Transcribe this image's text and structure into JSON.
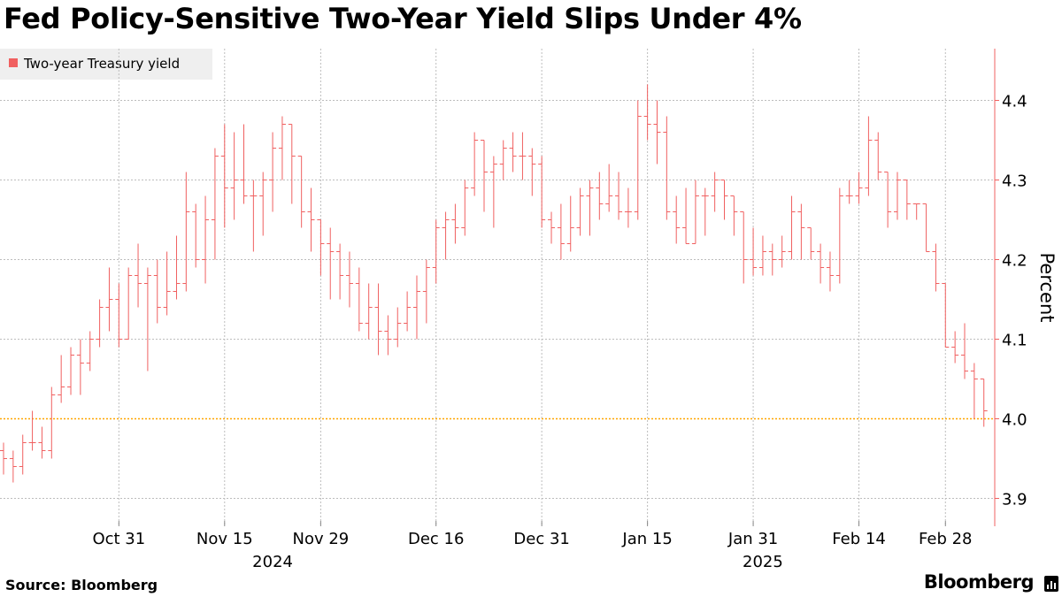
{
  "chart_data": {
    "type": "ohlc",
    "title": "Fed Policy-Sensitive Two-Year Yield Slips Under 4%",
    "series_name": "Two-year Treasury yield",
    "series_color": "#f06060",
    "reference_line": {
      "value": 4.0,
      "color": "#ffa500",
      "style": "dotted"
    },
    "ylabel": "Percent",
    "ylim": [
      3.865,
      4.465
    ],
    "y_ticks": [
      3.9,
      4.0,
      4.1,
      4.2,
      4.3,
      4.4
    ],
    "y_tick_labels": [
      "3.9",
      "4.0",
      "4.1",
      "4.2",
      "4.3",
      "4.4"
    ],
    "x_tick_labels": [
      "Oct 31",
      "Nov 15",
      "Nov 29",
      "Dec 16",
      "Dec 31",
      "Jan 15",
      "Jan 31",
      "Feb 14",
      "Feb 28"
    ],
    "x_tick_bar_index": [
      12,
      23,
      33,
      45,
      56,
      67,
      78,
      89,
      98
    ],
    "year_labels": [
      {
        "label": "2024",
        "bar_index": 28
      },
      {
        "label": "2025",
        "bar_index": 79
      }
    ],
    "bars": [
      [
        3.96,
        3.97,
        3.93,
        3.95
      ],
      [
        3.95,
        3.96,
        3.92,
        3.94
      ],
      [
        3.94,
        3.98,
        3.93,
        3.97
      ],
      [
        3.97,
        4.01,
        3.96,
        3.97
      ],
      [
        3.97,
        3.99,
        3.95,
        3.96
      ],
      [
        3.96,
        4.04,
        3.95,
        4.03
      ],
      [
        4.03,
        4.08,
        4.02,
        4.04
      ],
      [
        4.04,
        4.09,
        4.03,
        4.08
      ],
      [
        4.08,
        4.1,
        4.03,
        4.07
      ],
      [
        4.07,
        4.11,
        4.06,
        4.1
      ],
      [
        4.1,
        4.15,
        4.09,
        4.14
      ],
      [
        4.14,
        4.19,
        4.11,
        4.15
      ],
      [
        4.15,
        4.17,
        4.09,
        4.1
      ],
      [
        4.1,
        4.19,
        4.1,
        4.18
      ],
      [
        4.18,
        4.22,
        4.14,
        4.17
      ],
      [
        4.17,
        4.19,
        4.06,
        4.18
      ],
      [
        4.18,
        4.2,
        4.12,
        4.14
      ],
      [
        4.14,
        4.21,
        4.13,
        4.16
      ],
      [
        4.16,
        4.23,
        4.15,
        4.17
      ],
      [
        4.17,
        4.31,
        4.16,
        4.26
      ],
      [
        4.26,
        4.27,
        4.19,
        4.2
      ],
      [
        4.2,
        4.28,
        4.17,
        4.25
      ],
      [
        4.25,
        4.34,
        4.2,
        4.33
      ],
      [
        4.33,
        4.37,
        4.24,
        4.29
      ],
      [
        4.29,
        4.36,
        4.25,
        4.3
      ],
      [
        4.3,
        4.37,
        4.27,
        4.28
      ],
      [
        4.28,
        4.3,
        4.21,
        4.28
      ],
      [
        4.28,
        4.31,
        4.23,
        4.3
      ],
      [
        4.3,
        4.36,
        4.26,
        4.34
      ],
      [
        4.34,
        4.38,
        4.3,
        4.37
      ],
      [
        4.37,
        4.35,
        4.27,
        4.33
      ],
      [
        4.33,
        4.31,
        4.24,
        4.26
      ],
      [
        4.26,
        4.29,
        4.21,
        4.25
      ],
      [
        4.25,
        4.24,
        4.18,
        4.22
      ],
      [
        4.22,
        4.24,
        4.15,
        4.21
      ],
      [
        4.21,
        4.22,
        4.15,
        4.18
      ],
      [
        4.18,
        4.21,
        4.14,
        4.17
      ],
      [
        4.17,
        4.19,
        4.11,
        4.12
      ],
      [
        4.12,
        4.17,
        4.1,
        4.14
      ],
      [
        4.14,
        4.17,
        4.08,
        4.11
      ],
      [
        4.11,
        4.13,
        4.08,
        4.1
      ],
      [
        4.1,
        4.14,
        4.09,
        4.12
      ],
      [
        4.12,
        4.16,
        4.11,
        4.14
      ],
      [
        4.14,
        4.18,
        4.1,
        4.16
      ],
      [
        4.16,
        4.2,
        4.12,
        4.19
      ],
      [
        4.19,
        4.25,
        4.17,
        4.24
      ],
      [
        4.24,
        4.26,
        4.2,
        4.25
      ],
      [
        4.25,
        4.27,
        4.22,
        4.24
      ],
      [
        4.24,
        4.3,
        4.23,
        4.29
      ],
      [
        4.29,
        4.36,
        4.28,
        4.35
      ],
      [
        4.35,
        4.32,
        4.26,
        4.31
      ],
      [
        4.31,
        4.33,
        4.24,
        4.32
      ],
      [
        4.32,
        4.35,
        4.3,
        4.34
      ],
      [
        4.34,
        4.36,
        4.31,
        4.33
      ],
      [
        4.33,
        4.36,
        4.3,
        4.33
      ],
      [
        4.33,
        4.34,
        4.28,
        4.32
      ],
      [
        4.32,
        4.33,
        4.24,
        4.25
      ],
      [
        4.25,
        4.26,
        4.22,
        4.24
      ],
      [
        4.24,
        4.27,
        4.2,
        4.22
      ],
      [
        4.22,
        4.28,
        4.21,
        4.24
      ],
      [
        4.24,
        4.29,
        4.23,
        4.28
      ],
      [
        4.28,
        4.3,
        4.23,
        4.29
      ],
      [
        4.29,
        4.31,
        4.25,
        4.27
      ],
      [
        4.27,
        4.32,
        4.26,
        4.28
      ],
      [
        4.28,
        4.31,
        4.25,
        4.26
      ],
      [
        4.26,
        4.29,
        4.24,
        4.26
      ],
      [
        4.26,
        4.4,
        4.25,
        4.38
      ],
      [
        4.38,
        4.42,
        4.35,
        4.37
      ],
      [
        4.37,
        4.4,
        4.32,
        4.36
      ],
      [
        4.36,
        4.38,
        4.25,
        4.26
      ],
      [
        4.26,
        4.28,
        4.22,
        4.24
      ],
      [
        4.24,
        4.29,
        4.22,
        4.22
      ],
      [
        4.22,
        4.3,
        4.22,
        4.28
      ],
      [
        4.28,
        4.29,
        4.23,
        4.28
      ],
      [
        4.28,
        4.31,
        4.26,
        4.3
      ],
      [
        4.3,
        4.3,
        4.25,
        4.28
      ],
      [
        4.28,
        4.27,
        4.23,
        4.26
      ],
      [
        4.26,
        4.26,
        4.17,
        4.2
      ],
      [
        4.2,
        4.24,
        4.18,
        4.19
      ],
      [
        4.19,
        4.23,
        4.18,
        4.21
      ],
      [
        4.21,
        4.22,
        4.18,
        4.2
      ],
      [
        4.2,
        4.23,
        4.19,
        4.21
      ],
      [
        4.21,
        4.28,
        4.2,
        4.26
      ],
      [
        4.26,
        4.27,
        4.2,
        4.24
      ],
      [
        4.24,
        4.23,
        4.2,
        4.21
      ],
      [
        4.21,
        4.22,
        4.17,
        4.19
      ],
      [
        4.19,
        4.21,
        4.16,
        4.18
      ],
      [
        4.18,
        4.29,
        4.17,
        4.28
      ],
      [
        4.28,
        4.3,
        4.27,
        4.28
      ],
      [
        4.28,
        4.31,
        4.27,
        4.29
      ],
      [
        4.29,
        4.38,
        4.28,
        4.35
      ],
      [
        4.35,
        4.36,
        4.3,
        4.31
      ],
      [
        4.31,
        4.3,
        4.24,
        4.26
      ],
      [
        4.26,
        4.31,
        4.25,
        4.3
      ],
      [
        4.3,
        4.3,
        4.25,
        4.27
      ],
      [
        4.27,
        4.27,
        4.25,
        4.27
      ],
      [
        4.27,
        4.27,
        4.22,
        4.21
      ],
      [
        4.21,
        4.22,
        4.16,
        4.17
      ],
      [
        4.17,
        4.16,
        4.1,
        4.09
      ],
      [
        4.09,
        4.11,
        4.07,
        4.08
      ],
      [
        4.08,
        4.12,
        4.05,
        4.06
      ],
      [
        4.06,
        4.07,
        4.0,
        4.05
      ],
      [
        4.05,
        4.05,
        3.99,
        4.01
      ]
    ]
  },
  "source": "Source: Bloomberg",
  "brand": "Bloomberg"
}
